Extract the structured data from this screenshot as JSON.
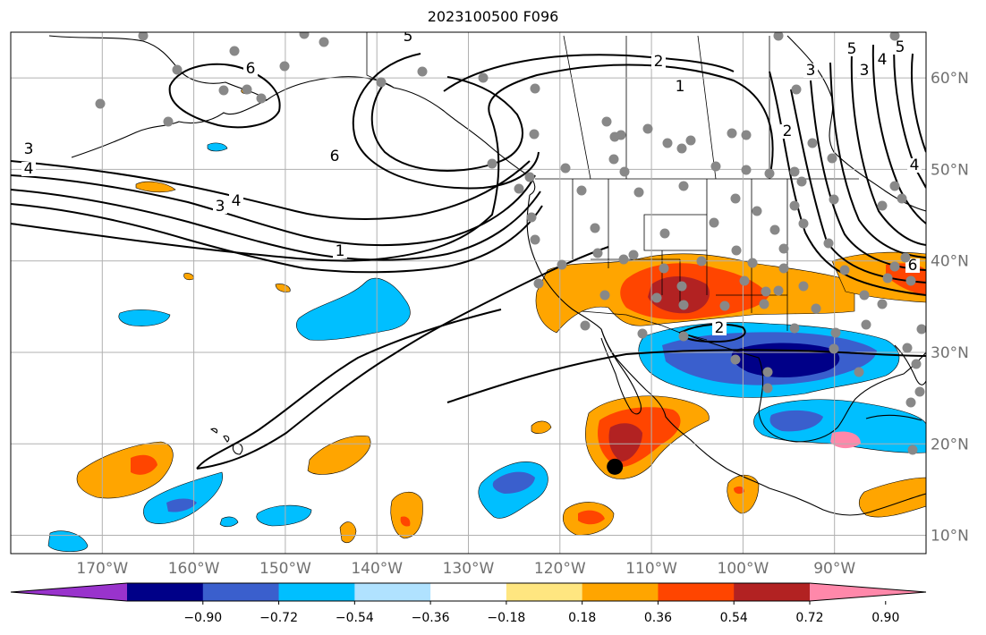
{
  "title": "2023100500 F096",
  "map": {
    "type": "filled-contour-map-with-contours",
    "extent": {
      "lon": [
        -180,
        -80
      ],
      "lat": [
        8,
        65
      ]
    },
    "grid": true,
    "lat_labels": [
      {
        "lat": 60,
        "text": "60°N"
      },
      {
        "lat": 50,
        "text": "50°N"
      },
      {
        "lat": 40,
        "text": "40°N"
      },
      {
        "lat": 30,
        "text": "30°N"
      },
      {
        "lat": 20,
        "text": "20°N"
      },
      {
        "lat": 10,
        "text": "10°N"
      }
    ],
    "lon_labels": [
      {
        "lon": -170,
        "text": "170°W"
      },
      {
        "lon": -160,
        "text": "160°W"
      },
      {
        "lon": -150,
        "text": "150°W"
      },
      {
        "lon": -140,
        "text": "140°W"
      },
      {
        "lon": -130,
        "text": "130°W"
      },
      {
        "lon": -120,
        "text": "120°W"
      },
      {
        "lon": -110,
        "text": "110°W"
      },
      {
        "lon": -100,
        "text": "100°W"
      },
      {
        "lon": -90,
        "text": "90°W"
      }
    ],
    "contour_labels": [
      "5",
      "6",
      "2",
      "1",
      "6",
      "3",
      "4",
      "1",
      "2",
      "5",
      "4",
      "3",
      "3",
      "4",
      "6",
      "5",
      "4",
      "3",
      "2"
    ],
    "marker": {
      "lon": -114,
      "lat": 17.5
    }
  },
  "colorbar": {
    "ticks": [
      "−0.90",
      "−0.72",
      "−0.54",
      "−0.36",
      "−0.18",
      "0.18",
      "0.36",
      "0.54",
      "0.72",
      "0.90"
    ],
    "colors": [
      "#9933cc",
      "#000088",
      "#3a5fcd",
      "#00bfff",
      "#b0e2ff",
      "#ffffff",
      "#ffe680",
      "#ffa500",
      "#ff4500",
      "#b22222",
      "#ff88aa"
    ],
    "extend": "both"
  },
  "colors": {
    "orange": "#ffa500",
    "red_orange": "#ff4500",
    "dark_red": "#b22222",
    "light_blue": "#00bfff",
    "blue": "#3a5fcd",
    "navy": "#000088",
    "pale_blue": "#b0e2ff",
    "pink": "#ff88aa",
    "station": "#888888"
  }
}
